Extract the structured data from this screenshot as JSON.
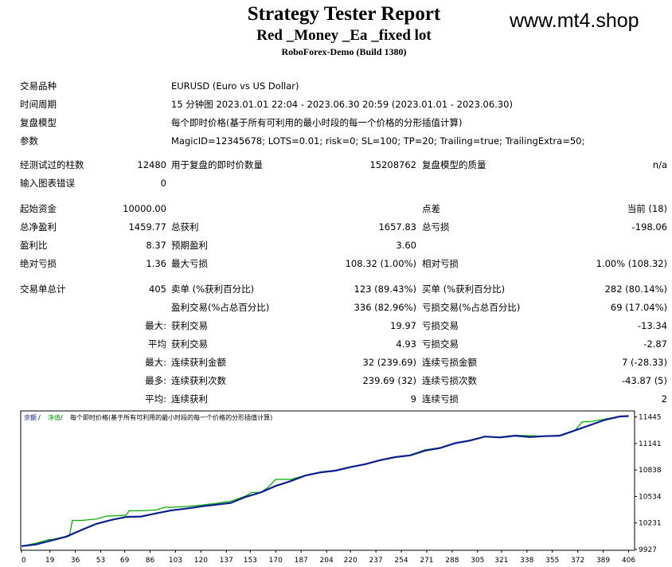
{
  "header": {
    "title": "Strategy Tester Report",
    "subtitle": "Red _Money _Ea _fixed lot",
    "build": "RoboForex-Demo (Build 1380)",
    "site": "www.mt4.shop"
  },
  "info": {
    "symbol_label": "交易品种",
    "symbol_value": "EURUSD (Euro vs US Dollar)",
    "period_label": "时间周期",
    "period_value": "15 分钟图 2023.01.01 22:04 - 2023.06.30 20:59 (2023.01.01 - 2023.06.30)",
    "model_label": "复盘模型",
    "model_value": "每个即时价格(基于所有可利用的最小时段的每一个价格的分形插值计算)",
    "params_label": "参数",
    "params_value": "MagicID=12345678; LOTS=0.01; risk=0; SL=100; TP=20; Trailing=true; TrailingExtra=50;"
  },
  "stats": {
    "bars_label": "经测试过的柱数",
    "bars_value": "12480",
    "ticks_label": "用于复盘的即时价数量",
    "ticks_value": "15208762",
    "quality_label": "复盘模型的质量",
    "quality_value": "n/a",
    "mismatch_label": "输入图表错误",
    "mismatch_value": "0",
    "deposit_label": "起始资金",
    "deposit_value": "10000.00",
    "spread_label": "点差",
    "spread_value": "当前 (18)",
    "net_label": "总净盈利",
    "net_value": "1459.77",
    "gross_profit_label": "总获利",
    "gross_profit_value": "1657.83",
    "gross_loss_label": "总亏损",
    "gross_loss_value": "-198.06",
    "pf_label": "盈利比",
    "pf_value": "8.37",
    "payoff_label": "预期盈利",
    "payoff_value": "3.60",
    "abs_dd_label": "绝对亏损",
    "abs_dd_value": "1.36",
    "max_dd_label": "最大亏损",
    "max_dd_value": "108.32 (1.00%)",
    "rel_dd_label": "相对亏损",
    "rel_dd_value": "1.00% (108.32)",
    "trades_label": "交易单总计",
    "trades_value": "405",
    "short_label": "卖单 (%获利百分比)",
    "short_value": "123 (89.43%)",
    "long_label": "买单 (%获利百分比)",
    "long_value": "282 (80.14%)",
    "win_label": "盈利交易(%占总百分比)",
    "win_value": "336 (82.96%)",
    "lose_label": "亏损交易(%占总百分比)",
    "lose_value": "69 (17.04%)",
    "largest_prefix": "最大:",
    "largest_win_label": "获利交易",
    "largest_win_value": "19.97",
    "largest_loss_label": "亏损交易",
    "largest_loss_value": "-13.34",
    "average_prefix": "平均",
    "avg_win_label": "获利交易",
    "avg_win_value": "4.93",
    "avg_loss_label": "亏损交易",
    "avg_loss_value": "-2.87",
    "max_prefix": "最大:",
    "max_cons_win_label": "连续获利金额",
    "max_cons_win_value": "32 (239.69)",
    "max_cons_loss_label": "连续亏损金额",
    "max_cons_loss_value": "7 (-28.33)",
    "most_prefix": "最多:",
    "most_cons_win_label": "连续获利次数",
    "most_cons_win_value": "239.69 (32)",
    "most_cons_loss_label": "连续亏损次数",
    "most_cons_loss_value": "-43.87 (5)",
    "avg2_prefix": "平均:",
    "avg_cons_win_label": "连续获利",
    "avg_cons_win_value": "9",
    "avg_cons_loss_label": "连续亏损",
    "avg_cons_loss_value": "2"
  },
  "chart_data": {
    "type": "line",
    "legend": {
      "balance_label": "余额",
      "sep1": " / ",
      "equity_label": "净值",
      "sep2": " / ",
      "model_label": "每个即时价格(基于所有可利用的最小时段的每一个价格的分形插值计算)",
      "position": "top-left"
    },
    "colors": {
      "balance": "#0a1f8f",
      "equity": "#00aa00",
      "border": "#000000"
    },
    "x_ticks": [
      0,
      19,
      36,
      53,
      69,
      86,
      103,
      120,
      137,
      153,
      170,
      187,
      204,
      220,
      237,
      254,
      271,
      288,
      305,
      321,
      338,
      355,
      372,
      389,
      406
    ],
    "y_ticks": [
      11445,
      11141,
      10838,
      10534,
      10231,
      9927
    ],
    "xlim": [
      0,
      410
    ],
    "ylim": [
      9927,
      11505
    ],
    "series": [
      {
        "name": "余额",
        "x": [
          0,
          10,
          20,
          30,
          40,
          50,
          60,
          70,
          80,
          90,
          100,
          110,
          120,
          130,
          140,
          150,
          160,
          170,
          180,
          190,
          200,
          210,
          220,
          230,
          240,
          250,
          260,
          270,
          280,
          290,
          300,
          310,
          320,
          330,
          340,
          350,
          360,
          370,
          380,
          390,
          400,
          406
        ],
        "values": [
          9965,
          9985,
          10030,
          10075,
          10150,
          10220,
          10265,
          10300,
          10305,
          10340,
          10375,
          10395,
          10420,
          10440,
          10460,
          10530,
          10580,
          10655,
          10710,
          10775,
          10810,
          10830,
          10870,
          10905,
          10950,
          10985,
          11005,
          11060,
          11090,
          11145,
          11175,
          11220,
          11210,
          11230,
          11215,
          11225,
          11230,
          11290,
          11350,
          11410,
          11450,
          11455
        ]
      },
      {
        "name": "净值",
        "x": [
          0,
          10,
          18,
          20,
          32,
          34,
          40,
          50,
          57,
          60,
          70,
          72,
          80,
          90,
          96,
          100,
          110,
          120,
          130,
          140,
          150,
          154,
          160,
          165,
          170,
          180,
          190,
          200,
          210,
          220,
          230,
          240,
          250,
          260,
          270,
          280,
          290,
          300,
          310,
          320,
          330,
          340,
          350,
          360,
          370,
          375,
          380,
          390,
          400,
          406
        ],
        "values": [
          9965,
          10000,
          10040,
          10040,
          10080,
          10260,
          10260,
          10275,
          10310,
          10310,
          10320,
          10370,
          10370,
          10380,
          10410,
          10410,
          10420,
          10435,
          10455,
          10480,
          10540,
          10580,
          10580,
          10640,
          10730,
          10730,
          10775,
          10815,
          10835,
          10875,
          10905,
          10955,
          10985,
          11010,
          11070,
          11090,
          11140,
          11180,
          11220,
          11215,
          11235,
          11230,
          11225,
          11235,
          11290,
          11390,
          11390,
          11420,
          11450,
          11460
        ]
      }
    ]
  }
}
